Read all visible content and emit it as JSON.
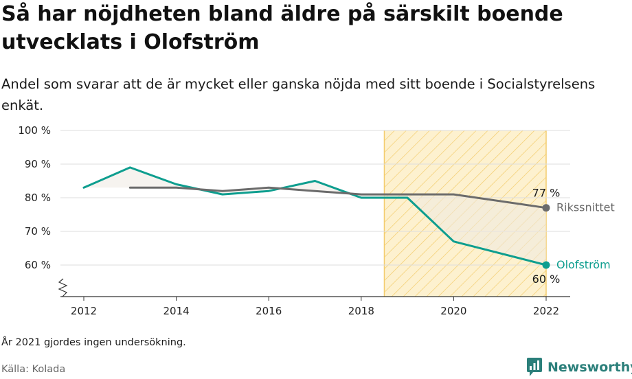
{
  "title": "Så har nöjdheten bland äldre på särskilt boende utvecklats i Olofström",
  "subtitle": "Andel som svarar att de är mycket eller ganska nöjda med sitt boende i Socialstyrelsens enkät.",
  "footnote": "År 2021 gjordes ingen undersökning.",
  "source": "Källa: Kolada",
  "brand": {
    "name": "Newsworthy",
    "color": "#2b7f7a"
  },
  "colors": {
    "olofstrom": "#0e9e8f",
    "riks": "#6b6b6b",
    "highlight_fill": "#fdf1cf",
    "highlight_stroke": "#f3cc6c",
    "grid": "#dddddd"
  },
  "chart_data": {
    "type": "line",
    "xlim": [
      2011.8,
      2022.5
    ],
    "ylim": [
      51,
      100
    ],
    "x_ticks": [
      2012,
      2014,
      2016,
      2018,
      2020,
      2022
    ],
    "x_tick_labels": [
      "2012",
      "2014",
      "2016",
      "2018",
      "2020",
      "2022"
    ],
    "y_ticks": [
      60,
      70,
      80,
      90,
      100
    ],
    "y_tick_labels": [
      "60 %",
      "70 %",
      "80 %",
      "90 %",
      "100 %"
    ],
    "axis_break": true,
    "highlight_range": [
      2018.5,
      2022
    ],
    "series": [
      {
        "name": "Olofström",
        "color": "#0e9e8f",
        "points": [
          {
            "x": 2012,
            "y": 83
          },
          {
            "x": 2013,
            "y": 89
          },
          {
            "x": 2014,
            "y": 84
          },
          {
            "x": 2015,
            "y": 81
          },
          {
            "x": 2016,
            "y": 82
          },
          {
            "x": 2017,
            "y": 85
          },
          {
            "x": 2018,
            "y": 80
          },
          {
            "x": 2019,
            "y": 80
          },
          {
            "x": 2020,
            "y": 67
          },
          {
            "x": 2022,
            "y": 60
          }
        ],
        "end_value_label": "60 %"
      },
      {
        "name": "Rikssnittet",
        "color": "#6b6b6b",
        "points": [
          {
            "x": 2013,
            "y": 83
          },
          {
            "x": 2014,
            "y": 83
          },
          {
            "x": 2015,
            "y": 82
          },
          {
            "x": 2016,
            "y": 83
          },
          {
            "x": 2017,
            "y": 82
          },
          {
            "x": 2018,
            "y": 81
          },
          {
            "x": 2019,
            "y": 81
          },
          {
            "x": 2020,
            "y": 81
          },
          {
            "x": 2022,
            "y": 77
          }
        ],
        "end_value_label": "77 %"
      }
    ]
  }
}
